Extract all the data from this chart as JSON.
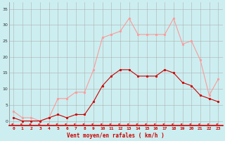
{
  "hours": [
    0,
    1,
    2,
    3,
    4,
    5,
    6,
    7,
    8,
    9,
    10,
    11,
    12,
    13,
    14,
    15,
    16,
    17,
    18,
    19,
    20,
    21,
    22,
    23
  ],
  "vent_moyen": [
    1,
    0,
    0,
    0,
    1,
    2,
    1,
    2,
    2,
    6,
    11,
    14,
    16,
    16,
    14,
    14,
    14,
    16,
    15,
    12,
    11,
    8,
    7,
    6
  ],
  "rafales": [
    3,
    1,
    1,
    0,
    1,
    7,
    7,
    9,
    9,
    16,
    26,
    27,
    28,
    32,
    27,
    27,
    27,
    27,
    32,
    24,
    25,
    19,
    8,
    13
  ],
  "bg_color": "#cceef0",
  "grid_color": "#b0b0b0",
  "line_moyen_color": "#cc0000",
  "line_rafales_color": "#ff9999",
  "xlabel": "Vent moyen/en rafales ( km/h )",
  "yticks": [
    0,
    5,
    10,
    15,
    20,
    25,
    30,
    35
  ],
  "xlim": [
    -0.5,
    23.5
  ],
  "ylim": [
    -1.5,
    37
  ]
}
